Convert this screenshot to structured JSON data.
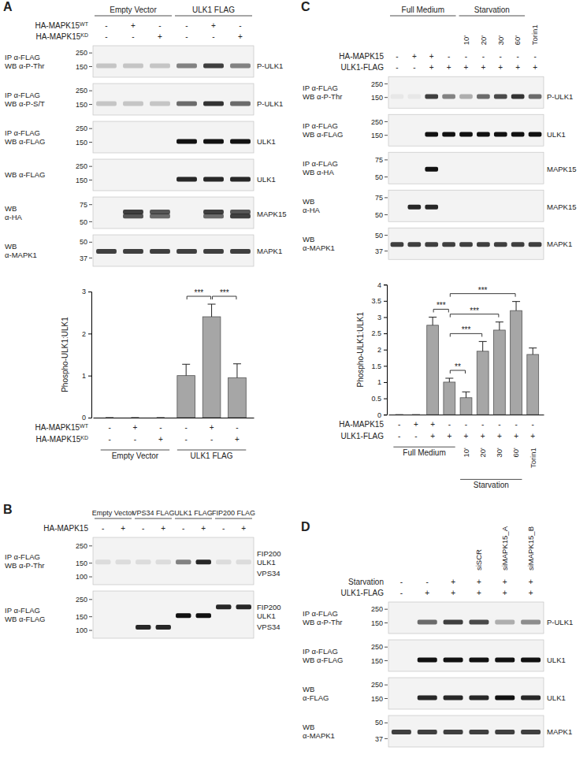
{
  "panels": [
    {
      "letter": "A",
      "groups": [
        {
          "label": "Empty Vector",
          "from": 0,
          "to": 2
        },
        {
          "label": "ULK1 FLAG",
          "from": 3,
          "to": 5
        }
      ],
      "conditions": [
        {
          "label": "HA-MAPK15",
          "sup": "WT",
          "signs": [
            "-",
            "+",
            "-",
            "-",
            "+",
            "-"
          ]
        },
        {
          "label": "HA-MAPK15",
          "sup": "KD",
          "signs": [
            "-",
            "-",
            "+",
            "-",
            "-",
            "+"
          ]
        }
      ],
      "blots": [
        {
          "left": [
            "IP α-FLAG",
            "WB α-P-Thr"
          ],
          "markers": [
            250,
            150
          ],
          "kda_range": [
            300,
            110
          ],
          "right": [
            {
              "text": "P-ULK1",
              "kda": 155
            }
          ],
          "bands": [
            {
              "kda": 155,
              "intensity": [
                0.2,
                0.2,
                0.2,
                0.5,
                0.8,
                0.5
              ]
            }
          ]
        },
        {
          "left": [
            "IP α-FLAG",
            "WB α-P-S/T"
          ],
          "markers": [
            250,
            150
          ],
          "kda_range": [
            300,
            110
          ],
          "right": [
            {
              "text": "P-ULK1",
              "kda": 155
            }
          ],
          "bands": [
            {
              "kda": 155,
              "intensity": [
                0.2,
                0.2,
                0.2,
                0.6,
                0.85,
                0.6
              ]
            }
          ]
        },
        {
          "left": [
            "IP α-FLAG",
            "WB α-FLAG"
          ],
          "markers": [
            250,
            150
          ],
          "kda_range": [
            300,
            110
          ],
          "right": [
            {
              "text": "ULK1",
              "kda": 155
            }
          ],
          "bands": [
            {
              "kda": 155,
              "intensity": [
                0,
                0,
                0,
                1,
                1,
                1
              ]
            }
          ]
        },
        {
          "left": [
            "WB α-FLAG"
          ],
          "markers": [
            250,
            150
          ],
          "kda_range": [
            300,
            110
          ],
          "right": [
            {
              "text": "ULK1",
              "kda": 155
            }
          ],
          "bands": [
            {
              "kda": 155,
              "intensity": [
                0,
                0,
                0,
                0.9,
                0.9,
                0.9
              ]
            }
          ]
        },
        {
          "left": [
            "WB",
            "α-HA"
          ],
          "markers": [
            75,
            50
          ],
          "kda_range": [
            85,
            45
          ],
          "right": [
            {
              "text": "MAPK15",
              "kda": 60
            }
          ],
          "bands": [
            {
              "kda": 63,
              "intensity": [
                0,
                0.8,
                0.7,
                0,
                0.8,
                0.7
              ]
            },
            {
              "kda": 57,
              "intensity": [
                0,
                0.7,
                0.6,
                0,
                0.6,
                0.8
              ]
            }
          ]
        },
        {
          "left": [
            "WB",
            "α-MAPK1"
          ],
          "markers": [
            50,
            37
          ],
          "kda_range": [
            55,
            33
          ],
          "right": [
            {
              "text": "MAPK1",
              "kda": 42
            }
          ],
          "bands": [
            {
              "kda": 42,
              "intensity": [
                0.8,
                0.8,
                0.8,
                0.8,
                0.8,
                0.8
              ]
            }
          ]
        }
      ]
    },
    {
      "letter": "B",
      "groups": [
        {
          "label": "Empty Vector",
          "from": 0,
          "to": 1
        },
        {
          "label": "VPS34 FLAG",
          "from": 2,
          "to": 3
        },
        {
          "label": "ULK1 FLAG",
          "from": 4,
          "to": 5
        },
        {
          "label": "FIP200 FLAG",
          "from": 6,
          "to": 7
        }
      ],
      "conditions": [
        {
          "label": "HA-MAPK15",
          "signs": [
            "-",
            "+",
            "-",
            "+",
            "-",
            "+",
            "-",
            "+"
          ]
        }
      ],
      "blots": [
        {
          "left": [
            "IP α-FLAG",
            "WB α-P-Thr"
          ],
          "markers": [
            250,
            150,
            100
          ],
          "kda_range": [
            300,
            85
          ],
          "right": [
            {
              "text": "FIP200",
              "kda": 200
            },
            {
              "text": "ULK1",
              "kda": 155
            },
            {
              "text": "VPS34",
              "kda": 110
            }
          ],
          "bands": [
            {
              "kda": 155,
              "intensity": [
                0.1,
                0.1,
                0.1,
                0.1,
                0.5,
                0.9,
                0.1,
                0.1
              ]
            }
          ]
        },
        {
          "left": [
            "IP α-FLAG",
            "WB α-FLAG"
          ],
          "markers": [
            250,
            150,
            100
          ],
          "kda_range": [
            300,
            85
          ],
          "right": [
            {
              "text": "FIP200",
              "kda": 200
            },
            {
              "text": "ULK1",
              "kda": 155
            },
            {
              "text": "VPS34",
              "kda": 110
            }
          ],
          "bands": [
            {
              "kda": 200,
              "intensity": [
                0,
                0,
                0,
                0,
                0,
                0,
                0.9,
                0.9
              ]
            },
            {
              "kda": 155,
              "intensity": [
                0,
                0,
                0,
                0,
                1,
                1,
                0,
                0
              ]
            },
            {
              "kda": 110,
              "intensity": [
                0,
                0,
                0.9,
                0.9,
                0,
                0,
                0,
                0
              ]
            }
          ]
        }
      ]
    },
    {
      "letter": "C",
      "groups": [
        {
          "label": "Full Medium",
          "from": 0,
          "to": 3
        },
        {
          "label": "Starvation",
          "from": 4,
          "to": 7
        }
      ],
      "lane_labels": [
        null,
        null,
        null,
        null,
        "10'",
        "20'",
        "30'",
        "60'",
        "Torin1"
      ],
      "conditions": [
        {
          "label": "HA-MAPK15",
          "signs": [
            "-",
            "+",
            "+",
            "-",
            "-",
            "-",
            "-",
            "-",
            "-"
          ]
        },
        {
          "label": "ULK1-FLAG",
          "signs": [
            "-",
            "-",
            "+",
            "+",
            "+",
            "+",
            "+",
            "+",
            "+"
          ]
        }
      ],
      "blots": [
        {
          "left": [
            "IP α-FLAG",
            "WB α-P-Thr"
          ],
          "markers": [
            250,
            150
          ],
          "kda_range": [
            300,
            110
          ],
          "right": [
            {
              "text": "P-ULK1",
              "kda": 155
            }
          ],
          "bands": [
            {
              "kda": 155,
              "intensity": [
                0.05,
                0.05,
                0.8,
                0.5,
                0.3,
                0.6,
                0.75,
                0.85,
                0.6
              ]
            }
          ]
        },
        {
          "left": [
            "IP α-FLAG",
            "WB α-FLAG"
          ],
          "markers": [
            250,
            150
          ],
          "kda_range": [
            300,
            110
          ],
          "right": [
            {
              "text": "ULK1",
              "kda": 155
            }
          ],
          "bands": [
            {
              "kda": 155,
              "intensity": [
                0,
                0,
                1,
                1,
                1,
                1,
                1,
                1,
                1
              ]
            }
          ]
        },
        {
          "left": [
            "IP α-FLAG",
            "WB α-HA"
          ],
          "markers": [
            75,
            50
          ],
          "kda_range": [
            85,
            45
          ],
          "right": [
            {
              "text": "MAPK15",
              "kda": 60
            }
          ],
          "bands": [
            {
              "kda": 60,
              "intensity": [
                0,
                0,
                1,
                0,
                0,
                0,
                0,
                0,
                0
              ]
            }
          ]
        },
        {
          "left": [
            "WB",
            "α-HA"
          ],
          "markers": [
            75,
            50
          ],
          "kda_range": [
            85,
            45
          ],
          "right": [
            {
              "text": "MAPK15",
              "kda": 60
            }
          ],
          "bands": [
            {
              "kda": 60,
              "intensity": [
                0,
                0.9,
                0.9,
                0,
                0,
                0,
                0,
                0,
                0
              ]
            }
          ]
        },
        {
          "left": [
            "WB",
            "α-MAPK1"
          ],
          "markers": [
            50,
            37
          ],
          "kda_range": [
            55,
            33
          ],
          "right": [
            {
              "text": "MAPK1",
              "kda": 42
            }
          ],
          "bands": [
            {
              "kda": 42,
              "intensity": [
                0.8,
                0.8,
                0.8,
                0.8,
                0.8,
                0.8,
                0.8,
                0.8,
                0.8
              ]
            }
          ]
        }
      ]
    },
    {
      "letter": "D",
      "lane_labels": [
        null,
        null,
        null,
        "siSCR",
        "siMAPK15_A",
        "siMAPK15_B"
      ],
      "conditions": [
        {
          "label": "Starvation",
          "signs": [
            "-",
            "-",
            "+",
            "+",
            "+",
            "+"
          ]
        },
        {
          "label": "ULK1-FLAG",
          "signs": [
            "-",
            "+",
            "+",
            "+",
            "+",
            "+"
          ]
        }
      ],
      "blots": [
        {
          "left": [
            "IP α-FLAG",
            "WB α-P-Thr"
          ],
          "markers": [
            250,
            150
          ],
          "kda_range": [
            300,
            110
          ],
          "right": [
            {
              "text": "P-ULK1",
              "kda": 155
            }
          ],
          "bands": [
            {
              "kda": 155,
              "intensity": [
                0,
                0.6,
                0.8,
                0.75,
                0.3,
                0.45
              ]
            }
          ]
        },
        {
          "left": [
            "IP α-FLAG",
            "WB α-FLAG"
          ],
          "markers": [
            250,
            150
          ],
          "kda_range": [
            300,
            110
          ],
          "right": [
            {
              "text": "ULK1",
              "kda": 155
            }
          ],
          "bands": [
            {
              "kda": 155,
              "intensity": [
                0,
                1,
                1,
                1,
                1,
                1
              ]
            }
          ]
        },
        {
          "left": [
            "WB",
            "α-FLAG"
          ],
          "markers": [
            250,
            150
          ],
          "kda_range": [
            300,
            110
          ],
          "right": [
            {
              "text": "ULK1",
              "kda": 155
            }
          ],
          "bands": [
            {
              "kda": 155,
              "intensity": [
                0,
                0.9,
                0.9,
                0.9,
                1,
                0.9
              ]
            }
          ]
        },
        {
          "left": [
            "WB",
            "α-MAPK1"
          ],
          "markers": [
            50,
            37
          ],
          "kda_range": [
            55,
            33
          ],
          "right": [
            {
              "text": "MAPK1",
              "kda": 42
            }
          ],
          "bands": [
            {
              "kda": 42,
              "intensity": [
                0.8,
                0.8,
                0.8,
                0.8,
                0.8,
                0.8
              ]
            }
          ]
        }
      ]
    }
  ],
  "chart_data": [
    {
      "type": "bar",
      "ylabel": "Phospho-ULK1:ULK1",
      "categories": [
        null,
        null,
        null,
        null,
        null,
        null
      ],
      "values": [
        0,
        0,
        0,
        1.0,
        2.4,
        0.95
      ],
      "errors": [
        0,
        0,
        0,
        0.27,
        0.3,
        0.33
      ],
      "color": "#a6a6a6",
      "ylim": [
        0,
        3
      ],
      "yticks": [
        0,
        1,
        2,
        3
      ],
      "annotations": [
        {
          "from": 3,
          "to": 4,
          "text": "***"
        },
        {
          "from": 4,
          "to": 5,
          "text": "***"
        }
      ],
      "conditions": [
        {
          "label": "HA-MAPK15",
          "sup": "WT",
          "signs": [
            "-",
            "+",
            "-",
            "-",
            "+",
            "-"
          ]
        },
        {
          "label": "HA-MAPK15",
          "sup": "KD",
          "signs": [
            "-",
            "-",
            "+",
            "-",
            "-",
            "+"
          ]
        }
      ],
      "groups": [
        {
          "label": "Empty Vector",
          "from": 0,
          "to": 2
        },
        {
          "label": "ULK1 FLAG",
          "from": 3,
          "to": 5
        }
      ]
    },
    {
      "type": "bar",
      "ylabel": "Phospho-ULK1:ULK1",
      "categories": [
        null,
        null,
        null,
        null,
        "10'",
        "20'",
        "30'",
        "60'",
        "Torin1"
      ],
      "values": [
        0,
        0,
        2.75,
        1.0,
        0.52,
        1.95,
        2.6,
        3.2,
        1.85
      ],
      "errors": [
        0,
        0,
        0.25,
        0.12,
        0.18,
        0.3,
        0.25,
        0.28,
        0.2
      ],
      "color": "#a6a6a6",
      "ylim": [
        0,
        4
      ],
      "yticks": [
        0,
        0.5,
        1,
        1.5,
        2,
        2.5,
        3,
        3.5,
        4
      ],
      "annotations": [
        {
          "from": 2,
          "to": 3,
          "text": "***"
        },
        {
          "from": 3,
          "to": 4,
          "text": "**"
        },
        {
          "from": 3,
          "to": 5,
          "text": "***"
        },
        {
          "from": 3,
          "to": 6,
          "text": "***"
        },
        {
          "from": 3,
          "to": 7,
          "text": "***"
        }
      ],
      "conditions": [
        {
          "label": "HA-MAPK15",
          "signs": [
            "-",
            "+",
            "+",
            "-",
            "-",
            "-",
            "-",
            "-",
            "-"
          ]
        },
        {
          "label": "ULK1-FLAG",
          "signs": [
            "-",
            "-",
            "+",
            "+",
            "+",
            "+",
            "+",
            "+",
            "+"
          ]
        }
      ],
      "groups": [
        {
          "label": "Full Medium",
          "from": 0,
          "to": 3
        },
        {
          "label": "Starvation",
          "from": 4,
          "to": 7
        }
      ]
    }
  ]
}
